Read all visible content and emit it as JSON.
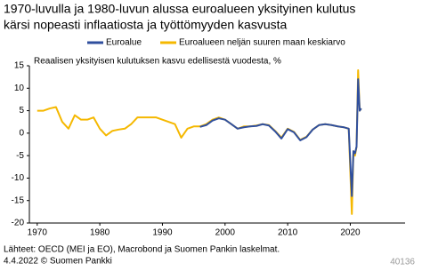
{
  "chart_data": {
    "type": "line",
    "title_lines": [
      "1970-luvulla ja 1980-luvun alussa euroalueen yksityinen kulutus",
      "kärsi nopeasti inflaatiosta ja työttömyyden kasvusta"
    ],
    "y_axis_label": "Reaalisen yksityisen kulutuksen kasvu edellisestä vuodesta, %",
    "x": [
      1970,
      1971,
      1972,
      1973,
      1974,
      1975,
      1976,
      1977,
      1978,
      1979,
      1980,
      1981,
      1982,
      1983,
      1984,
      1985,
      1986,
      1987,
      1988,
      1989,
      1990,
      1991,
      1992,
      1993,
      1994,
      1995,
      1996,
      1997,
      1998,
      1999,
      2000,
      2001,
      2002,
      2003,
      2004,
      2005,
      2006,
      2007,
      2008,
      2009,
      2010,
      2011,
      2012,
      2013,
      2014,
      2015,
      2016,
      2017,
      2018,
      2019,
      2019.75,
      2020.25,
      2020.5,
      2020.75,
      2021,
      2021.25,
      2021.5,
      2021.75
    ],
    "series": [
      {
        "name": "Euroalue",
        "color": "#2f4f9e",
        "values": [
          null,
          null,
          null,
          null,
          null,
          null,
          null,
          null,
          null,
          null,
          null,
          null,
          null,
          null,
          null,
          null,
          null,
          null,
          null,
          null,
          null,
          null,
          null,
          null,
          null,
          null,
          1.4,
          1.8,
          2.8,
          3.3,
          3.0,
          2.0,
          1.0,
          1.3,
          1.5,
          1.6,
          2.0,
          1.7,
          0.4,
          -1.2,
          0.9,
          0.2,
          -1.6,
          -0.9,
          0.8,
          1.8,
          2.0,
          1.8,
          1.5,
          1.3,
          1.0,
          -14,
          -4,
          -4.5,
          -3,
          12,
          5,
          5.5
        ]
      },
      {
        "name": "Euroalueen neljän suuren maan keskiarvo",
        "color": "#f5b800",
        "values": [
          5,
          5,
          5.5,
          5.8,
          2.5,
          1,
          4,
          3,
          3,
          3.5,
          1,
          -0.5,
          0.5,
          0.8,
          1,
          2,
          3.5,
          3.5,
          3.5,
          3.5,
          3,
          2.5,
          2,
          -1,
          1,
          1.5,
          1.5,
          2,
          3,
          3.5,
          3,
          2,
          1,
          1.5,
          1.5,
          1.7,
          2,
          1.8,
          0.5,
          -1,
          1,
          0.3,
          -1.5,
          -0.8,
          0.8,
          1.8,
          2,
          1.8,
          1.5,
          1.3,
          1,
          -18,
          -4,
          -5,
          -3,
          14,
          5,
          5.5
        ]
      }
    ],
    "xlim": [
      1968.75,
      2028.75
    ],
    "xticks": [
      1970,
      1980,
      1990,
      2000,
      2010,
      2020
    ],
    "ylim": [
      -20,
      15
    ],
    "yticks": [
      15,
      10,
      5,
      0,
      -5,
      -10,
      -15,
      -20
    ],
    "source_lines": [
      "Lähteet: OECD (MEI ja EO), Macrobond ja Suomen Pankin laskelmat.",
      "4.4.2022 © Suomen Pankki"
    ],
    "chart_id": "40136"
  }
}
